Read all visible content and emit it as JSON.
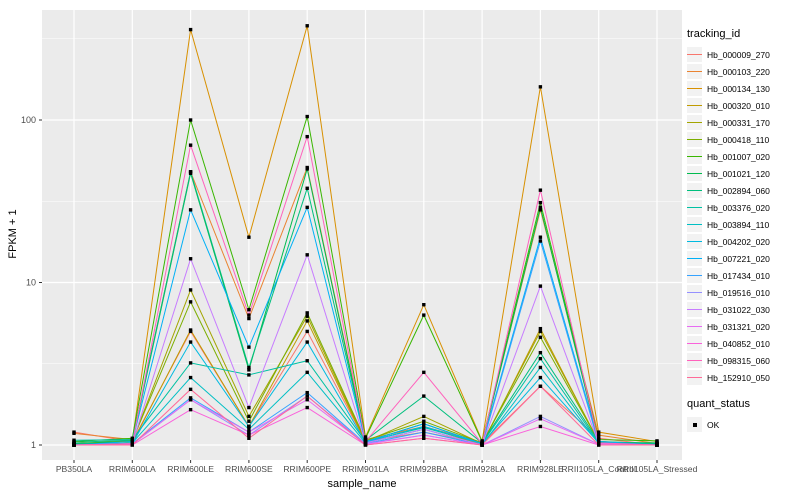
{
  "figure": {
    "xlabel": "sample_name",
    "ylabel": "FPKM + 1",
    "legend_title": "tracking_id",
    "quant_legend_title": "quant_status",
    "quant_status_label": "OK",
    "panel_bg": "#EBEBEB",
    "grid_color": "#FFFFFF",
    "tick_label_color": "#4D4D4D",
    "point_color": "#000000"
  },
  "chart_data": {
    "type": "line",
    "log_y": true,
    "title": "",
    "xlabel": "sample_name",
    "ylabel": "FPKM + 1",
    "legend_position": "right",
    "grid": true,
    "ylim": [
      0.95,
      480
    ],
    "y_tick_values": [
      1,
      10,
      100
    ],
    "y_tick_labels": [
      "1",
      "10",
      "100"
    ],
    "y_minor_tick_values": [
      3.162,
      31.62,
      316.2
    ],
    "categories": [
      "PB350LA",
      "RRIM600LA",
      "RRIM600LE",
      "RRIM600SE",
      "RRIM600PE",
      "RRIM901LA",
      "RRIM928BA",
      "RRIM928LA",
      "RRIM928LE",
      "RRII105LA_Control",
      "RRII105LA_Stressed"
    ],
    "point_shape": "square",
    "series": [
      {
        "name": "Hb_000009_270",
        "color": "#F8766D",
        "values": [
          1.2,
          1.05,
          5.0,
          1.3,
          5.0,
          1.05,
          1.2,
          1.02,
          2.3,
          1.1,
          1.0
        ]
      },
      {
        "name": "Hb_000103_220",
        "color": "#EA8331",
        "values": [
          1.18,
          1.08,
          48,
          6.0,
          51,
          1.08,
          1.3,
          1.04,
          28,
          1.15,
          1.02
        ]
      },
      {
        "name": "Hb_000134_130",
        "color": "#D89000",
        "values": [
          1.02,
          1.06,
          360,
          19,
          380,
          1.12,
          7.3,
          1.06,
          160,
          1.2,
          1.05
        ]
      },
      {
        "name": "Hb_000320_010",
        "color": "#C09B00",
        "values": [
          1.0,
          1.03,
          5.1,
          1.3,
          5.8,
          1.04,
          1.3,
          1.0,
          5.2,
          1.04,
          1.01
        ]
      },
      {
        "name": "Hb_000331_170",
        "color": "#A3A500",
        "values": [
          1.01,
          1.05,
          9.0,
          1.5,
          6.2,
          1.05,
          1.5,
          1.02,
          5.0,
          1.05,
          1.0
        ]
      },
      {
        "name": "Hb_000418_110",
        "color": "#7CAE00",
        "values": [
          1.02,
          1.06,
          7.6,
          1.4,
          6.5,
          1.07,
          1.4,
          1.03,
          4.6,
          1.05,
          1.01
        ]
      },
      {
        "name": "Hb_001007_020",
        "color": "#39B600",
        "values": [
          1.05,
          1.1,
          100,
          6.8,
          105,
          1.1,
          6.3,
          1.05,
          31,
          1.08,
          1.06
        ]
      },
      {
        "name": "Hb_001021_120",
        "color": "#00BB4E",
        "values": [
          1.02,
          1.05,
          47,
          2.9,
          50,
          1.05,
          1.35,
          1.02,
          29,
          1.04,
          1.03
        ]
      },
      {
        "name": "Hb_002894_060",
        "color": "#00BF7D",
        "values": [
          1.04,
          1.07,
          48,
          3.0,
          38,
          1.07,
          2.0,
          1.03,
          3.7,
          1.05,
          1.02
        ]
      },
      {
        "name": "Hb_003376_020",
        "color": "#00C1A3",
        "values": [
          1.07,
          1.08,
          3.2,
          2.7,
          3.3,
          1.05,
          1.28,
          1.02,
          3.4,
          1.03,
          1.01
        ]
      },
      {
        "name": "Hb_003894_110",
        "color": "#00BFC4",
        "values": [
          1.0,
          1.03,
          2.6,
          1.25,
          2.8,
          1.03,
          1.25,
          1.0,
          3.0,
          1.02,
          1.0
        ]
      },
      {
        "name": "Hb_004202_020",
        "color": "#00BAE0",
        "values": [
          1.01,
          1.02,
          4.3,
          1.3,
          4.3,
          1.04,
          1.3,
          1.02,
          2.6,
          1.03,
          1.0
        ]
      },
      {
        "name": "Hb_007221_020",
        "color": "#00B0F6",
        "values": [
          1.0,
          1.05,
          28,
          4.0,
          29,
          1.05,
          1.35,
          1.02,
          19,
          1.05,
          1.0
        ]
      },
      {
        "name": "Hb_017434_010",
        "color": "#35A2FF",
        "values": [
          1.0,
          1.02,
          1.95,
          1.2,
          2.1,
          1.02,
          1.2,
          1.0,
          18,
          1.02,
          1.0
        ]
      },
      {
        "name": "Hb_019516_010",
        "color": "#9590FF",
        "values": [
          1.0,
          1.01,
          1.9,
          1.15,
          2.0,
          1.02,
          1.15,
          1.0,
          1.5,
          1.01,
          1.0
        ]
      },
      {
        "name": "Hb_031022_030",
        "color": "#C77CFF",
        "values": [
          1.0,
          1.02,
          14,
          1.7,
          14.8,
          1.03,
          1.25,
          1.0,
          9.5,
          1.02,
          1.0
        ]
      },
      {
        "name": "Hb_031321_020",
        "color": "#E76BF3",
        "values": [
          1.0,
          1.01,
          1.9,
          1.2,
          1.9,
          1.01,
          1.15,
          1.0,
          1.45,
          1.01,
          1.0
        ]
      },
      {
        "name": "Hb_040852_010",
        "color": "#FA62DB",
        "values": [
          1.0,
          1.0,
          1.65,
          1.15,
          1.7,
          1.0,
          1.1,
          1.0,
          1.3,
          1.0,
          1.0
        ]
      },
      {
        "name": "Hb_098315_060",
        "color": "#FF62BC",
        "values": [
          1.0,
          1.02,
          70,
          6.3,
          79,
          1.05,
          2.8,
          1.02,
          37,
          1.03,
          1.0
        ]
      },
      {
        "name": "Hb_152910_050",
        "color": "#FF6A98",
        "values": [
          1.0,
          1.0,
          2.2,
          1.1,
          2.0,
          1.0,
          1.1,
          1.0,
          2.3,
          1.0,
          1.0
        ]
      }
    ]
  }
}
